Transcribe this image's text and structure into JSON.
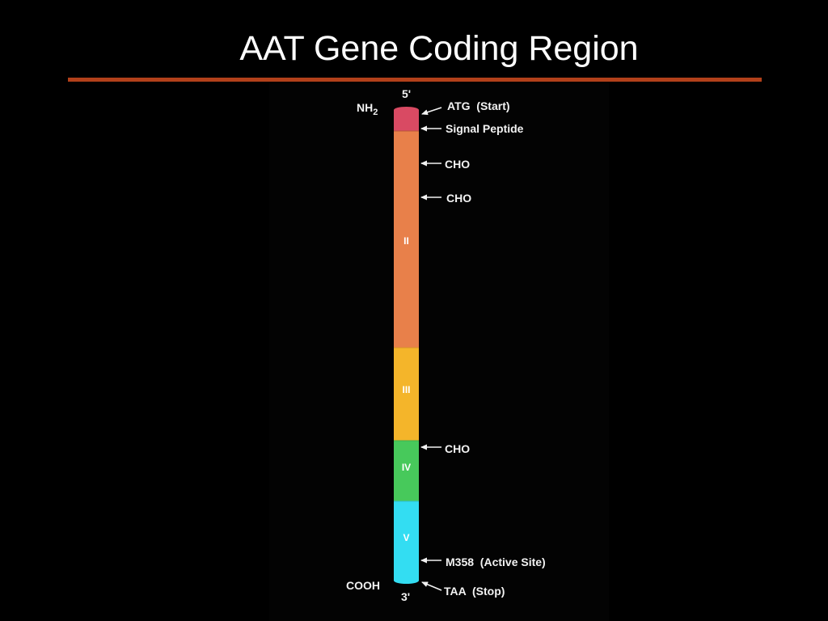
{
  "slide": {
    "title": "AAT Gene Coding Region",
    "accent_color": "#b2401a",
    "background_color": "#000000"
  },
  "diagram": {
    "top_end_label": "5'",
    "bottom_end_label": "3'",
    "n_terminus_label": "NH",
    "n_terminus_subscript": "2",
    "c_terminus_label": "COOH",
    "segments": [
      {
        "id": "signal",
        "label": "",
        "color": "#d94a63"
      },
      {
        "id": "exon2",
        "label": "II",
        "color": "#e8804a"
      },
      {
        "id": "exon3",
        "label": "III",
        "color": "#f4b52a"
      },
      {
        "id": "exon4",
        "label": "IV",
        "color": "#47c95b"
      },
      {
        "id": "exon5",
        "label": "V",
        "color": "#33ddf2"
      }
    ],
    "annotations": [
      {
        "id": "atg-start",
        "text": "ATG  (Start)"
      },
      {
        "id": "signal-peptide",
        "text": "Signal Peptide"
      },
      {
        "id": "cho-1",
        "text": "CHO"
      },
      {
        "id": "cho-2",
        "text": "CHO"
      },
      {
        "id": "cho-3",
        "text": "CHO"
      },
      {
        "id": "m358-active-site",
        "text": "M358  (Active Site)"
      },
      {
        "id": "taa-stop",
        "text": "TAA  (Stop)"
      }
    ]
  }
}
